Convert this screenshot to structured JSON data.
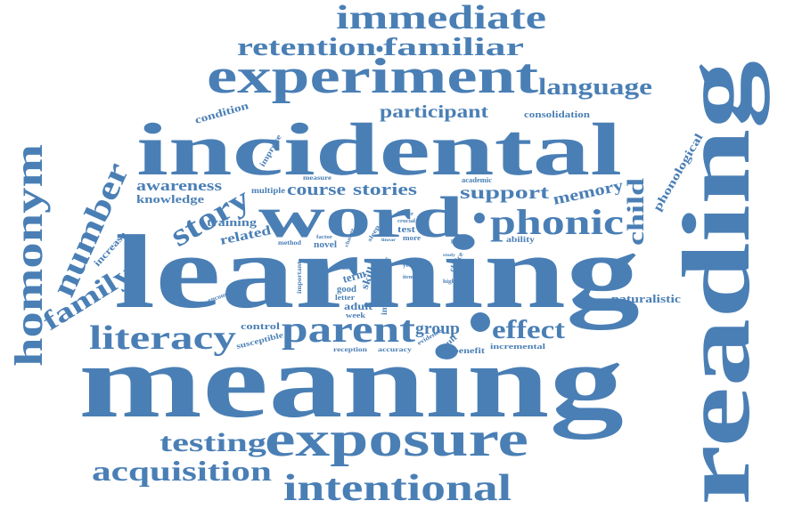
{
  "color": "#4a7fb5",
  "background": "#ffffff",
  "words": {
    "immediate": "immediate",
    "retention": "retention",
    "familiar": "familiar",
    "experiment": "experiment",
    "language": "language",
    "condition": "condition",
    "participant": "participant",
    "consolidation": "consolidation",
    "incidental": "incidental",
    "improve": "improve",
    "homonym": "homonym",
    "number": "number",
    "awareness": "awareness",
    "knowledge": "knowledge",
    "story": "story",
    "multiple": "multiple",
    "measure": "measure",
    "course": "course",
    "stories": "stories",
    "academic": "academic",
    "support": "support",
    "memory": "memory",
    "child": "child",
    "phonological": "phonological",
    "word": "word",
    "phonic": "phonic",
    "training": "training",
    "increase": "increase",
    "related": "related",
    "method": "method",
    "factor": "factor",
    "novel": "novel",
    "change": "change",
    "sleep": "sleep",
    "larger": "larger",
    "crucial": "crucial",
    "test": "test",
    "more": "more",
    "linear": "linear",
    "practice": "practice",
    "ability": "ability",
    "family": "family",
    "learning": "learning",
    "reading": "reading",
    "literacy": "literacy",
    "encounter": "encounter",
    "important": "important",
    "time": "time",
    "term": "term",
    "good": "good",
    "letter": "letter",
    "skill": "skill",
    "adult": "adult",
    "week": "week",
    "impact": "impact",
    "grade": "grade",
    "item": "item",
    "year": "year",
    "study": "study",
    "choice": "choice",
    "higher": "higher",
    "naturalistic": "naturalistic",
    "control": "control",
    "susceptible": "susceptible",
    "parent": "parent",
    "group": "group",
    "effect": "effect",
    "reception": "reception",
    "accuracy": "accuracy",
    "evidence": "evidence",
    "result": "result",
    "benefit": "benefit",
    "incremental": "incremental",
    "meaning": "meaning",
    "testing": "testing",
    "exposure": "exposure",
    "acquisition": "acquisition",
    "intentional": "intentional"
  }
}
